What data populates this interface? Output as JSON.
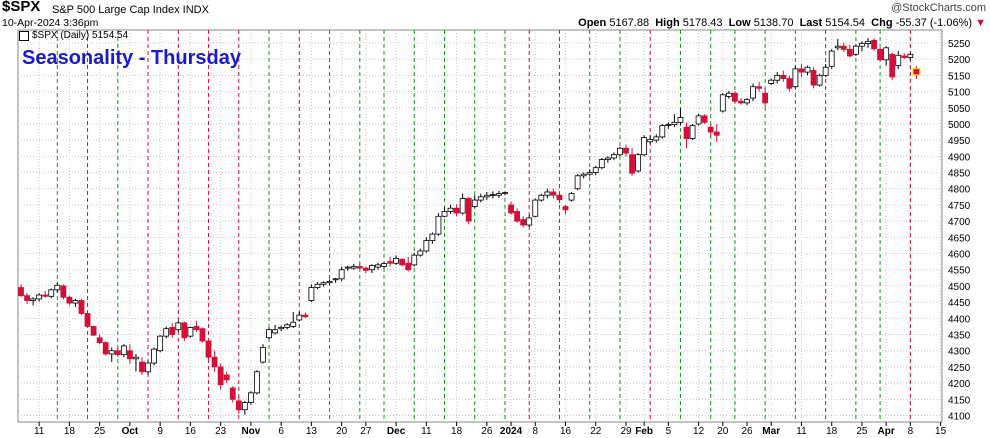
{
  "header": {
    "symbol": "$SPX",
    "description": "S&P 500 Large Cap Index INDX",
    "datetime": "10-Apr-2024 3:36pm",
    "open_label": "Open",
    "open": "5167.88",
    "high_label": "High",
    "high": "5178.43",
    "low_label": "Low",
    "low": "5138.70",
    "last_label": "Last",
    "last": "5154.54",
    "chg_label": "Chg",
    "chg": "-55.37 (-1.06%)",
    "chg_arrow": "▼",
    "brand": "@StockCharts.com"
  },
  "legend": {
    "label": "$SPX (Daily) 5154.54"
  },
  "annotation": {
    "title": "Seasonality - Thursday"
  },
  "colors": {
    "up_body": "#ffffff",
    "down_body": "#d3103a",
    "candle_line": "#000000",
    "green_line": "#109a10",
    "red_line": "#d3103a",
    "grid": "#c8c8c8",
    "title": "#1a1ad0"
  },
  "chart_data": {
    "type": "candlestick",
    "title": "Seasonality - Thursday",
    "series_name": "$SPX (Daily)",
    "ylim": [
      4080,
      5290
    ],
    "y_ticks": [
      4100,
      4150,
      4200,
      4250,
      4300,
      4350,
      4400,
      4450,
      4500,
      4550,
      4600,
      4650,
      4700,
      4750,
      4800,
      4850,
      4900,
      4950,
      5000,
      5050,
      5100,
      5150,
      5200,
      5250
    ],
    "x_tick_labels": [
      {
        "i": 3,
        "label": "11"
      },
      {
        "i": 8,
        "label": "18"
      },
      {
        "i": 13,
        "label": "25"
      },
      {
        "i": 18,
        "label": "Oct"
      },
      {
        "i": 23,
        "label": "9"
      },
      {
        "i": 28,
        "label": "16"
      },
      {
        "i": 33,
        "label": "23"
      },
      {
        "i": 38,
        "label": "Nov"
      },
      {
        "i": 43,
        "label": "6"
      },
      {
        "i": 48,
        "label": "13"
      },
      {
        "i": 53,
        "label": "20"
      },
      {
        "i": 57,
        "label": "27"
      },
      {
        "i": 62,
        "label": "Dec"
      },
      {
        "i": 67,
        "label": "11"
      },
      {
        "i": 72,
        "label": "18"
      },
      {
        "i": 77,
        "label": "26"
      },
      {
        "i": 81,
        "label": "2024"
      },
      {
        "i": 85,
        "label": "8"
      },
      {
        "i": 90,
        "label": "16"
      },
      {
        "i": 95,
        "label": "22"
      },
      {
        "i": 100,
        "label": "29"
      },
      {
        "i": 103,
        "label": "Feb"
      },
      {
        "i": 107,
        "label": "5"
      },
      {
        "i": 112,
        "label": "12"
      },
      {
        "i": 116,
        "label": "20"
      },
      {
        "i": 120,
        "label": "26"
      },
      {
        "i": 124,
        "label": "Mar"
      },
      {
        "i": 129,
        "label": "11"
      },
      {
        "i": 134,
        "label": "18"
      },
      {
        "i": 139,
        "label": "25"
      },
      {
        "i": 143,
        "label": "Apr"
      },
      {
        "i": 147,
        "label": "8"
      },
      {
        "i": 152,
        "label": "15"
      }
    ],
    "thursday_lines": [
      {
        "i": 6,
        "c": "green"
      },
      {
        "i": 11,
        "c": "red"
      },
      {
        "i": 16,
        "c": "green"
      },
      {
        "i": 21,
        "c": "red"
      },
      {
        "i": 26,
        "c": "red"
      },
      {
        "i": 31,
        "c": "red"
      },
      {
        "i": 36,
        "c": "red"
      },
      {
        "i": 41,
        "c": "green"
      },
      {
        "i": 46,
        "c": "red"
      },
      {
        "i": 51,
        "c": "green"
      },
      {
        "i": 56,
        "c": "green"
      },
      {
        "i": 60,
        "c": "green"
      },
      {
        "i": 65,
        "c": "green"
      },
      {
        "i": 70,
        "c": "green"
      },
      {
        "i": 75,
        "c": "green"
      },
      {
        "i": 80,
        "c": "green"
      },
      {
        "i": 84,
        "c": "red"
      },
      {
        "i": 89,
        "c": "red"
      },
      {
        "i": 94,
        "c": "green"
      },
      {
        "i": 99,
        "c": "green"
      },
      {
        "i": 104,
        "c": "red"
      },
      {
        "i": 109,
        "c": "green"
      },
      {
        "i": 114,
        "c": "green"
      },
      {
        "i": 118,
        "c": "green"
      },
      {
        "i": 123,
        "c": "green"
      },
      {
        "i": 128,
        "c": "green"
      },
      {
        "i": 133,
        "c": "red"
      },
      {
        "i": 138,
        "c": "green"
      },
      {
        "i": 142,
        "c": "green"
      },
      {
        "i": 147,
        "c": "red"
      }
    ],
    "candles": [
      {
        "o": 4495,
        "h": 4505,
        "l": 4465,
        "c": 4470
      },
      {
        "o": 4470,
        "h": 4478,
        "l": 4445,
        "c": 4455
      },
      {
        "o": 4455,
        "h": 4465,
        "l": 4440,
        "c": 4460
      },
      {
        "o": 4460,
        "h": 4478,
        "l": 4452,
        "c": 4472
      },
      {
        "o": 4472,
        "h": 4485,
        "l": 4463,
        "c": 4468
      },
      {
        "o": 4468,
        "h": 4492,
        "l": 4462,
        "c": 4488
      },
      {
        "o": 4488,
        "h": 4510,
        "l": 4480,
        "c": 4502
      },
      {
        "o": 4500,
        "h": 4505,
        "l": 4458,
        "c": 4465
      },
      {
        "o": 4465,
        "h": 4470,
        "l": 4440,
        "c": 4447
      },
      {
        "o": 4447,
        "h": 4460,
        "l": 4435,
        "c": 4455
      },
      {
        "o": 4455,
        "h": 4460,
        "l": 4410,
        "c": 4415
      },
      {
        "o": 4415,
        "h": 4418,
        "l": 4372,
        "c": 4375
      },
      {
        "o": 4375,
        "h": 4378,
        "l": 4345,
        "c": 4348
      },
      {
        "o": 4340,
        "h": 4350,
        "l": 4320,
        "c": 4325
      },
      {
        "o": 4325,
        "h": 4330,
        "l": 4285,
        "c": 4290
      },
      {
        "o": 4290,
        "h": 4310,
        "l": 4265,
        "c": 4300
      },
      {
        "o": 4300,
        "h": 4310,
        "l": 4280,
        "c": 4288
      },
      {
        "o": 4288,
        "h": 4320,
        "l": 4280,
        "c": 4315
      },
      {
        "o": 4300,
        "h": 4320,
        "l": 4260,
        "c": 4275
      },
      {
        "o": 4275,
        "h": 4290,
        "l": 4236,
        "c": 4280
      },
      {
        "o": 4265,
        "h": 4280,
        "l": 4225,
        "c": 4235
      },
      {
        "o": 4235,
        "h": 4270,
        "l": 4225,
        "c": 4262
      },
      {
        "o": 4262,
        "h": 4310,
        "l": 4255,
        "c": 4305
      },
      {
        "o": 4300,
        "h": 4348,
        "l": 4295,
        "c": 4345
      },
      {
        "o": 4345,
        "h": 4375,
        "l": 4338,
        "c": 4368
      },
      {
        "o": 4372,
        "h": 4385,
        "l": 4340,
        "c": 4350
      },
      {
        "o": 4365,
        "h": 4392,
        "l": 4358,
        "c": 4386
      },
      {
        "o": 4386,
        "h": 4390,
        "l": 4330,
        "c": 4340
      },
      {
        "o": 4345,
        "h": 4375,
        "l": 4340,
        "c": 4372
      },
      {
        "o": 4375,
        "h": 4392,
        "l": 4358,
        "c": 4365
      },
      {
        "o": 4368,
        "h": 4372,
        "l": 4325,
        "c": 4330
      },
      {
        "o": 4330,
        "h": 4335,
        "l": 4270,
        "c": 4280
      },
      {
        "o": 4280,
        "h": 4300,
        "l": 4235,
        "c": 4250
      },
      {
        "o": 4250,
        "h": 4260,
        "l": 4180,
        "c": 4195
      },
      {
        "o": 4225,
        "h": 4235,
        "l": 4200,
        "c": 4210
      },
      {
        "o": 4185,
        "h": 4190,
        "l": 4140,
        "c": 4150
      },
      {
        "o": 4145,
        "h": 4160,
        "l": 4105,
        "c": 4118
      },
      {
        "o": 4118,
        "h": 4145,
        "l": 4103,
        "c": 4140
      },
      {
        "o": 4140,
        "h": 4175,
        "l": 4133,
        "c": 4170
      },
      {
        "o": 4170,
        "h": 4240,
        "l": 4165,
        "c": 4235
      },
      {
        "o": 4265,
        "h": 4320,
        "l": 4260,
        "c": 4310
      },
      {
        "o": 4340,
        "h": 4372,
        "l": 4335,
        "c": 4365
      },
      {
        "o": 4355,
        "h": 4380,
        "l": 4350,
        "c": 4365
      },
      {
        "o": 4368,
        "h": 4378,
        "l": 4360,
        "c": 4372
      },
      {
        "o": 4372,
        "h": 4385,
        "l": 4366,
        "c": 4380
      },
      {
        "o": 4375,
        "h": 4420,
        "l": 4370,
        "c": 4388
      },
      {
        "o": 4395,
        "h": 4420,
        "l": 4390,
        "c": 4410
      },
      {
        "o": 4410,
        "h": 4418,
        "l": 4400,
        "c": 4405
      },
      {
        "o": 4455,
        "h": 4505,
        "l": 4450,
        "c": 4495
      },
      {
        "o": 4495,
        "h": 4512,
        "l": 4490,
        "c": 4505
      },
      {
        "o": 4505,
        "h": 4514,
        "l": 4498,
        "c": 4510
      },
      {
        "o": 4510,
        "h": 4520,
        "l": 4504,
        "c": 4514
      },
      {
        "o": 4520,
        "h": 4525,
        "l": 4510,
        "c": 4522
      },
      {
        "o": 4522,
        "h": 4560,
        "l": 4515,
        "c": 4550
      },
      {
        "o": 4555,
        "h": 4562,
        "l": 4547,
        "c": 4558
      },
      {
        "o": 4555,
        "h": 4568,
        "l": 4550,
        "c": 4560
      },
      {
        "o": 4560,
        "h": 4570,
        "l": 4552,
        "c": 4555
      },
      {
        "o": 4555,
        "h": 4560,
        "l": 4540,
        "c": 4548
      },
      {
        "o": 4550,
        "h": 4567,
        "l": 4540,
        "c": 4563
      },
      {
        "o": 4558,
        "h": 4572,
        "l": 4550,
        "c": 4565
      },
      {
        "o": 4560,
        "h": 4573,
        "l": 4554,
        "c": 4569
      },
      {
        "o": 4575,
        "h": 4590,
        "l": 4560,
        "c": 4570
      },
      {
        "o": 4570,
        "h": 4594,
        "l": 4565,
        "c": 4585
      },
      {
        "o": 4582,
        "h": 4586,
        "l": 4560,
        "c": 4565
      },
      {
        "o": 4570,
        "h": 4590,
        "l": 4545,
        "c": 4550
      },
      {
        "o": 4565,
        "h": 4602,
        "l": 4560,
        "c": 4595
      },
      {
        "o": 4595,
        "h": 4615,
        "l": 4590,
        "c": 4608
      },
      {
        "o": 4608,
        "h": 4650,
        "l": 4603,
        "c": 4640
      },
      {
        "o": 4640,
        "h": 4665,
        "l": 4630,
        "c": 4660
      },
      {
        "o": 4660,
        "h": 4725,
        "l": 4655,
        "c": 4715
      },
      {
        "o": 4715,
        "h": 4742,
        "l": 4712,
        "c": 4730
      },
      {
        "o": 4730,
        "h": 4750,
        "l": 4722,
        "c": 4740
      },
      {
        "o": 4740,
        "h": 4752,
        "l": 4715,
        "c": 4725
      },
      {
        "o": 4725,
        "h": 4785,
        "l": 4720,
        "c": 4770
      },
      {
        "o": 4770,
        "h": 4775,
        "l": 4690,
        "c": 4700
      },
      {
        "o": 4745,
        "h": 4780,
        "l": 4740,
        "c": 4765
      },
      {
        "o": 4765,
        "h": 4785,
        "l": 4758,
        "c": 4775
      },
      {
        "o": 4775,
        "h": 4790,
        "l": 4765,
        "c": 4780
      },
      {
        "o": 4780,
        "h": 4792,
        "l": 4770,
        "c": 4782
      },
      {
        "o": 4780,
        "h": 4793,
        "l": 4772,
        "c": 4785
      },
      {
        "o": 4785,
        "h": 4790,
        "l": 4780,
        "c": 4788
      },
      {
        "o": 4750,
        "h": 4760,
        "l": 4720,
        "c": 4725
      },
      {
        "o": 4730,
        "h": 4740,
        "l": 4695,
        "c": 4700
      },
      {
        "o": 4705,
        "h": 4715,
        "l": 4680,
        "c": 4688
      },
      {
        "o": 4688,
        "h": 4720,
        "l": 4682,
        "c": 4710
      },
      {
        "o": 4715,
        "h": 4770,
        "l": 4712,
        "c": 4765
      },
      {
        "o": 4765,
        "h": 4785,
        "l": 4760,
        "c": 4780
      },
      {
        "o": 4780,
        "h": 4800,
        "l": 4770,
        "c": 4790
      },
      {
        "o": 4790,
        "h": 4800,
        "l": 4770,
        "c": 4780
      },
      {
        "o": 4780,
        "h": 4790,
        "l": 4755,
        "c": 4766
      },
      {
        "o": 4745,
        "h": 4750,
        "l": 4720,
        "c": 4735
      },
      {
        "o": 4765,
        "h": 4790,
        "l": 4760,
        "c": 4785
      },
      {
        "o": 4800,
        "h": 4845,
        "l": 4795,
        "c": 4840
      },
      {
        "o": 4840,
        "h": 4850,
        "l": 4832,
        "c": 4845
      },
      {
        "o": 4845,
        "h": 4860,
        "l": 4838,
        "c": 4850
      },
      {
        "o": 4850,
        "h": 4870,
        "l": 4842,
        "c": 4865
      },
      {
        "o": 4865,
        "h": 4895,
        "l": 4860,
        "c": 4890
      },
      {
        "o": 4890,
        "h": 4900,
        "l": 4880,
        "c": 4895
      },
      {
        "o": 4895,
        "h": 4912,
        "l": 4888,
        "c": 4905
      },
      {
        "o": 4905,
        "h": 4930,
        "l": 4900,
        "c": 4925
      },
      {
        "o": 4925,
        "h": 4935,
        "l": 4900,
        "c": 4910
      },
      {
        "o": 4905,
        "h": 4925,
        "l": 4840,
        "c": 4848
      },
      {
        "o": 4855,
        "h": 4910,
        "l": 4850,
        "c": 4905
      },
      {
        "o": 4905,
        "h": 4965,
        "l": 4900,
        "c": 4958
      },
      {
        "o": 4945,
        "h": 4965,
        "l": 4938,
        "c": 4952
      },
      {
        "o": 4950,
        "h": 4968,
        "l": 4942,
        "c": 4960
      },
      {
        "o": 4960,
        "h": 5000,
        "l": 4955,
        "c": 4995
      },
      {
        "o": 4995,
        "h": 5005,
        "l": 4985,
        "c": 4998
      },
      {
        "o": 4998,
        "h": 5030,
        "l": 4990,
        "c": 5005
      },
      {
        "o": 5005,
        "h": 5048,
        "l": 4995,
        "c": 5020
      },
      {
        "o": 4990,
        "h": 5005,
        "l": 4925,
        "c": 4955
      },
      {
        "o": 4955,
        "h": 5000,
        "l": 4950,
        "c": 4995
      },
      {
        "o": 5000,
        "h": 5032,
        "l": 4995,
        "c": 5025
      },
      {
        "o": 5025,
        "h": 5030,
        "l": 5000,
        "c": 5005
      },
      {
        "o": 4990,
        "h": 5000,
        "l": 4960,
        "c": 4975
      },
      {
        "o": 4975,
        "h": 5000,
        "l": 4945,
        "c": 4965
      },
      {
        "o": 5040,
        "h": 5095,
        "l": 5035,
        "c": 5090
      },
      {
        "o": 5085,
        "h": 5102,
        "l": 5078,
        "c": 5095
      },
      {
        "o": 5095,
        "h": 5100,
        "l": 5065,
        "c": 5070
      },
      {
        "o": 5070,
        "h": 5080,
        "l": 5060,
        "c": 5065
      },
      {
        "o": 5065,
        "h": 5080,
        "l": 5058,
        "c": 5075
      },
      {
        "o": 5080,
        "h": 5125,
        "l": 5070,
        "c": 5115
      },
      {
        "o": 5115,
        "h": 5130,
        "l": 5100,
        "c": 5110
      },
      {
        "o": 5095,
        "h": 5110,
        "l": 5050,
        "c": 5065
      },
      {
        "o": 5125,
        "h": 5140,
        "l": 5120,
        "c": 5135
      },
      {
        "o": 5135,
        "h": 5160,
        "l": 5125,
        "c": 5150
      },
      {
        "o": 5150,
        "h": 5165,
        "l": 5130,
        "c": 5140
      },
      {
        "o": 5140,
        "h": 5150,
        "l": 5100,
        "c": 5110
      },
      {
        "o": 5115,
        "h": 5180,
        "l": 5110,
        "c": 5170
      },
      {
        "o": 5170,
        "h": 5185,
        "l": 5145,
        "c": 5160
      },
      {
        "o": 5160,
        "h": 5180,
        "l": 5150,
        "c": 5175
      },
      {
        "o": 5165,
        "h": 5175,
        "l": 5110,
        "c": 5120
      },
      {
        "o": 5120,
        "h": 5155,
        "l": 5115,
        "c": 5150
      },
      {
        "o": 5150,
        "h": 5185,
        "l": 5145,
        "c": 5175
      },
      {
        "o": 5178,
        "h": 5230,
        "l": 5170,
        "c": 5225
      },
      {
        "o": 5235,
        "h": 5262,
        "l": 5228,
        "c": 5240
      },
      {
        "o": 5240,
        "h": 5250,
        "l": 5222,
        "c": 5230
      },
      {
        "o": 5230,
        "h": 5245,
        "l": 5205,
        "c": 5210
      },
      {
        "o": 5215,
        "h": 5245,
        "l": 5210,
        "c": 5240
      },
      {
        "o": 5240,
        "h": 5255,
        "l": 5225,
        "c": 5248
      },
      {
        "o": 5248,
        "h": 5265,
        "l": 5235,
        "c": 5255
      },
      {
        "o": 5258,
        "h": 5265,
        "l": 5225,
        "c": 5232
      },
      {
        "o": 5230,
        "h": 5235,
        "l": 5195,
        "c": 5198
      },
      {
        "o": 5198,
        "h": 5240,
        "l": 5180,
        "c": 5235
      },
      {
        "o": 5215,
        "h": 5220,
        "l": 5135,
        "c": 5145
      },
      {
        "o": 5180,
        "h": 5225,
        "l": 5170,
        "c": 5212
      },
      {
        "o": 5210,
        "h": 5218,
        "l": 5200,
        "c": 5205
      },
      {
        "o": 5205,
        "h": 5220,
        "l": 5195,
        "c": 5215
      },
      {
        "o": 5167.88,
        "h": 5178.43,
        "l": 5138.7,
        "c": 5154.54
      }
    ],
    "highlight_last": true
  }
}
